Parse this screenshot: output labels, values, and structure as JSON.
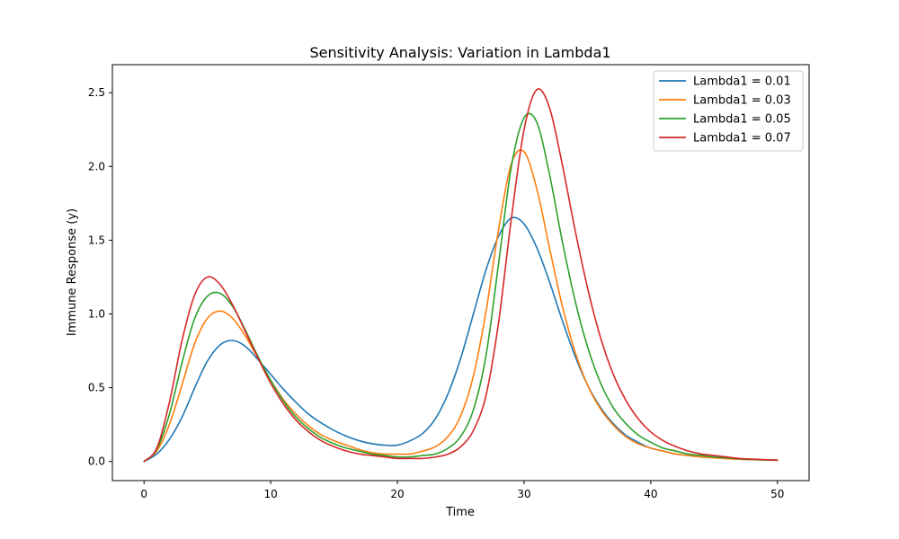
{
  "chart_data": {
    "type": "line",
    "title": "Sensitivity Analysis: Variation in Lambda1",
    "xlabel": "Time",
    "ylabel": "Immune Response (y)",
    "xlim": [
      -2.5,
      52.5
    ],
    "ylim": [
      -0.13,
      2.69
    ],
    "xticks": [
      0,
      10,
      20,
      30,
      40,
      50
    ],
    "xtick_labels": [
      "0",
      "10",
      "20",
      "30",
      "40",
      "50"
    ],
    "yticks": [
      0.0,
      0.5,
      1.0,
      1.5,
      2.0,
      2.5
    ],
    "ytick_labels": [
      "0.0",
      "0.5",
      "1.0",
      "1.5",
      "2.0",
      "2.5"
    ],
    "grid": false,
    "legend_position": "upper-right",
    "x": [
      0,
      1,
      2,
      3,
      4,
      5,
      6,
      7,
      8,
      9,
      10,
      11,
      12,
      13,
      14,
      15,
      16,
      17,
      18,
      19,
      20,
      21,
      22,
      23,
      24,
      25,
      26,
      27,
      28,
      29,
      30,
      31,
      32,
      33,
      34,
      35,
      36,
      37,
      38,
      39,
      40,
      41,
      42,
      43,
      44,
      45,
      46,
      47,
      48,
      49,
      50
    ],
    "series": [
      {
        "name": "Lambda1 = 0.01",
        "color": "#1f77b4",
        "values": [
          0.0,
          0.05,
          0.15,
          0.3,
          0.5,
          0.68,
          0.79,
          0.82,
          0.78,
          0.69,
          0.59,
          0.49,
          0.4,
          0.32,
          0.26,
          0.21,
          0.17,
          0.14,
          0.12,
          0.11,
          0.11,
          0.14,
          0.19,
          0.29,
          0.46,
          0.7,
          1.0,
          1.3,
          1.53,
          1.65,
          1.61,
          1.45,
          1.22,
          0.96,
          0.72,
          0.52,
          0.37,
          0.26,
          0.18,
          0.13,
          0.09,
          0.07,
          0.05,
          0.04,
          0.03,
          0.025,
          0.02,
          0.015,
          0.012,
          0.01,
          0.008
        ]
      },
      {
        "name": "Lambda1 = 0.03",
        "color": "#ff7f0e",
        "values": [
          0.0,
          0.07,
          0.25,
          0.52,
          0.8,
          0.97,
          1.02,
          0.97,
          0.85,
          0.7,
          0.55,
          0.42,
          0.32,
          0.24,
          0.18,
          0.14,
          0.11,
          0.08,
          0.06,
          0.05,
          0.05,
          0.05,
          0.07,
          0.1,
          0.17,
          0.31,
          0.58,
          1.02,
          1.58,
          2.02,
          2.1,
          1.85,
          1.45,
          1.06,
          0.75,
          0.52,
          0.36,
          0.25,
          0.17,
          0.12,
          0.09,
          0.07,
          0.05,
          0.04,
          0.03,
          0.024,
          0.019,
          0.015,
          0.012,
          0.01,
          0.008
        ]
      },
      {
        "name": "Lambda1 = 0.05",
        "color": "#2ca02c",
        "values": [
          0.0,
          0.08,
          0.32,
          0.67,
          0.97,
          1.12,
          1.14,
          1.05,
          0.89,
          0.71,
          0.55,
          0.41,
          0.3,
          0.22,
          0.16,
          0.12,
          0.09,
          0.07,
          0.05,
          0.04,
          0.03,
          0.03,
          0.04,
          0.05,
          0.09,
          0.17,
          0.35,
          0.72,
          1.35,
          2.0,
          2.33,
          2.3,
          1.95,
          1.5,
          1.1,
          0.78,
          0.54,
          0.37,
          0.26,
          0.18,
          0.13,
          0.09,
          0.07,
          0.05,
          0.04,
          0.03,
          0.024,
          0.018,
          0.014,
          0.011,
          0.008
        ]
      },
      {
        "name": "Lambda1 = 0.07",
        "color": "#d62728",
        "values": [
          0.0,
          0.09,
          0.4,
          0.82,
          1.13,
          1.25,
          1.2,
          1.06,
          0.88,
          0.7,
          0.53,
          0.39,
          0.28,
          0.2,
          0.14,
          0.1,
          0.07,
          0.05,
          0.04,
          0.03,
          0.02,
          0.02,
          0.02,
          0.03,
          0.05,
          0.1,
          0.21,
          0.45,
          0.95,
          1.65,
          2.25,
          2.52,
          2.4,
          2.02,
          1.58,
          1.18,
          0.85,
          0.6,
          0.42,
          0.29,
          0.2,
          0.14,
          0.1,
          0.07,
          0.05,
          0.04,
          0.03,
          0.02,
          0.016,
          0.012,
          0.009
        ]
      }
    ]
  }
}
